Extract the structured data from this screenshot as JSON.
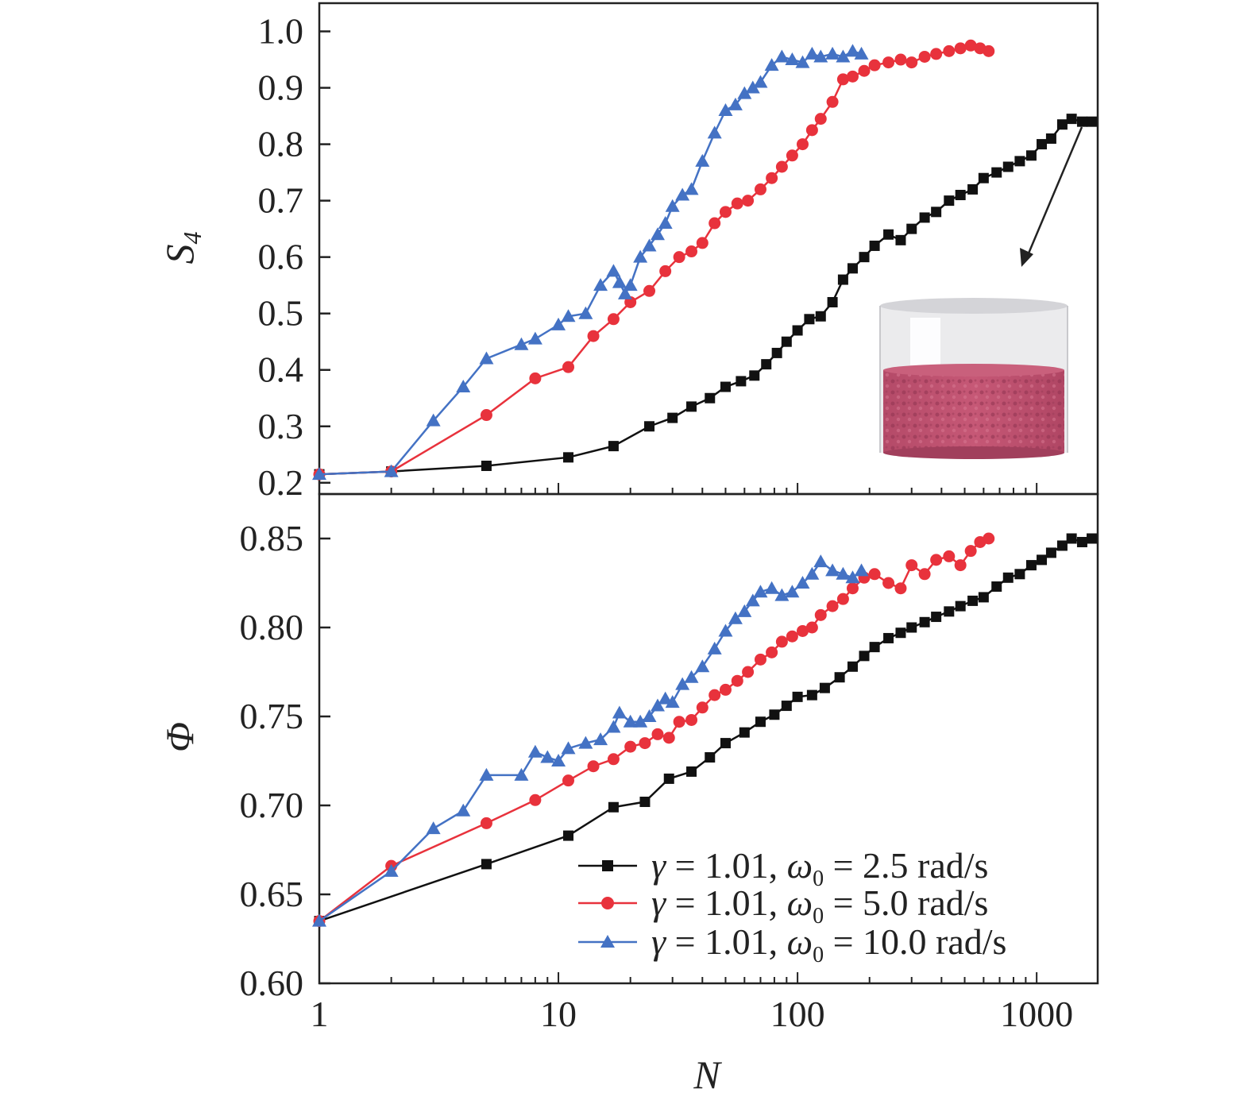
{
  "chart_data": [
    {
      "type": "line",
      "panel": "top",
      "xscale": "log",
      "xlim": [
        1,
        1800
      ],
      "ylim": [
        0.18,
        1.05
      ],
      "ylabel": "S",
      "ylabel_sub": "4",
      "yticks": [
        {
          "value": 0.2,
          "label": "0.2"
        },
        {
          "value": 0.3,
          "label": "0.3"
        },
        {
          "value": 0.4,
          "label": "0.4"
        },
        {
          "value": 0.5,
          "label": "0.5"
        },
        {
          "value": 0.6,
          "label": "0.6"
        },
        {
          "value": 0.7,
          "label": "0.7"
        },
        {
          "value": 0.8,
          "label": "0.8"
        },
        {
          "value": 0.9,
          "label": "0.9"
        },
        {
          "value": 1.0,
          "label": "1.0"
        }
      ],
      "inset": "image of a cylindrical container holding a packed granular bed",
      "series": [
        {
          "color": "#111111",
          "marker": "square",
          "x": [
            1,
            2,
            5,
            11,
            17,
            24,
            30,
            36,
            43,
            50,
            58,
            66,
            74,
            82,
            90,
            100,
            112,
            125,
            140,
            155,
            170,
            190,
            210,
            240,
            270,
            300,
            340,
            380,
            430,
            480,
            540,
            600,
            680,
            760,
            850,
            950,
            1050,
            1150,
            1280,
            1400,
            1550,
            1700
          ],
          "y": [
            0.215,
            0.22,
            0.23,
            0.245,
            0.265,
            0.3,
            0.315,
            0.335,
            0.35,
            0.37,
            0.38,
            0.39,
            0.41,
            0.43,
            0.45,
            0.47,
            0.49,
            0.495,
            0.52,
            0.56,
            0.58,
            0.6,
            0.62,
            0.64,
            0.63,
            0.65,
            0.67,
            0.68,
            0.7,
            0.71,
            0.72,
            0.74,
            0.75,
            0.76,
            0.77,
            0.78,
            0.8,
            0.81,
            0.835,
            0.845,
            0.84,
            0.84
          ]
        },
        {
          "color": "#e8323c",
          "marker": "circle",
          "x": [
            1,
            2,
            5,
            8,
            11,
            14,
            17,
            20,
            24,
            28,
            32,
            36,
            40,
            45,
            50,
            56,
            62,
            70,
            78,
            86,
            95,
            105,
            115,
            125,
            140,
            155,
            170,
            190,
            210,
            240,
            270,
            300,
            340,
            380,
            430,
            480,
            530,
            580,
            630
          ],
          "y": [
            0.215,
            0.22,
            0.32,
            0.385,
            0.405,
            0.46,
            0.49,
            0.52,
            0.54,
            0.575,
            0.6,
            0.61,
            0.625,
            0.66,
            0.68,
            0.695,
            0.7,
            0.72,
            0.74,
            0.76,
            0.78,
            0.8,
            0.825,
            0.845,
            0.875,
            0.915,
            0.92,
            0.93,
            0.94,
            0.945,
            0.95,
            0.945,
            0.955,
            0.96,
            0.965,
            0.97,
            0.975,
            0.97,
            0.965
          ]
        },
        {
          "color": "#4472c4",
          "marker": "triangle",
          "x": [
            1,
            2,
            3,
            4,
            5,
            7,
            8,
            10,
            11,
            13,
            15,
            17,
            18,
            19,
            20,
            22,
            24,
            26,
            28,
            30,
            33,
            36,
            40,
            45,
            50,
            55,
            60,
            65,
            70,
            78,
            86,
            95,
            105,
            115,
            125,
            140,
            155,
            170,
            185
          ],
          "y": [
            0.215,
            0.22,
            0.31,
            0.37,
            0.42,
            0.445,
            0.455,
            0.48,
            0.495,
            0.5,
            0.55,
            0.575,
            0.555,
            0.535,
            0.55,
            0.6,
            0.62,
            0.64,
            0.66,
            0.69,
            0.71,
            0.72,
            0.77,
            0.82,
            0.86,
            0.87,
            0.89,
            0.9,
            0.91,
            0.94,
            0.955,
            0.95,
            0.945,
            0.96,
            0.955,
            0.96,
            0.955,
            0.965,
            0.96
          ]
        }
      ]
    },
    {
      "type": "line",
      "panel": "bottom",
      "xscale": "log",
      "xlim": [
        1,
        1800
      ],
      "ylim": [
        0.6,
        0.875
      ],
      "xlabel": "N",
      "ylabel": "Φ",
      "xticks": [
        {
          "value": 1,
          "label": "1"
        },
        {
          "value": 10,
          "label": "10"
        },
        {
          "value": 100,
          "label": "100"
        },
        {
          "value": 1000,
          "label": "1000"
        }
      ],
      "yticks": [
        {
          "value": 0.6,
          "label": "0.60"
        },
        {
          "value": 0.65,
          "label": "0.65"
        },
        {
          "value": 0.7,
          "label": "0.70"
        },
        {
          "value": 0.75,
          "label": "0.75"
        },
        {
          "value": 0.8,
          "label": "0.80"
        },
        {
          "value": 0.85,
          "label": "0.85"
        }
      ],
      "legend_position": "bottom-right",
      "series": [
        {
          "name": "γ = 1.01, ω0 = 2.5 rad/s",
          "name_parts": {
            "gamma": "γ",
            "omega": "ω",
            "sub": "0",
            "pre": " = 1.01, ",
            "post": " = 2.5 rad/s"
          },
          "color": "#111111",
          "marker": "square",
          "x": [
            1,
            5,
            11,
            17,
            23,
            29,
            36,
            43,
            50,
            60,
            70,
            80,
            90,
            100,
            115,
            130,
            150,
            170,
            190,
            210,
            240,
            270,
            300,
            340,
            380,
            430,
            480,
            540,
            600,
            680,
            760,
            850,
            950,
            1050,
            1150,
            1280,
            1400,
            1550,
            1700
          ],
          "y": [
            0.635,
            0.667,
            0.683,
            0.699,
            0.702,
            0.715,
            0.719,
            0.727,
            0.735,
            0.741,
            0.747,
            0.751,
            0.756,
            0.761,
            0.762,
            0.766,
            0.772,
            0.778,
            0.784,
            0.789,
            0.794,
            0.797,
            0.8,
            0.803,
            0.806,
            0.809,
            0.812,
            0.815,
            0.817,
            0.823,
            0.828,
            0.83,
            0.835,
            0.838,
            0.842,
            0.846,
            0.85,
            0.848,
            0.85
          ]
        },
        {
          "name": "γ = 1.01, ω0 = 5.0 rad/s",
          "name_parts": {
            "gamma": "γ",
            "omega": "ω",
            "sub": "0",
            "pre": " = 1.01, ",
            "post": " = 5.0 rad/s"
          },
          "color": "#e8323c",
          "marker": "circle",
          "x": [
            1,
            2,
            5,
            8,
            11,
            14,
            17,
            20,
            23,
            26,
            29,
            32,
            36,
            40,
            45,
            50,
            56,
            62,
            70,
            78,
            86,
            95,
            105,
            115,
            125,
            140,
            155,
            170,
            190,
            210,
            240,
            270,
            300,
            340,
            380,
            430,
            480,
            530,
            580,
            630
          ],
          "y": [
            0.635,
            0.666,
            0.69,
            0.703,
            0.714,
            0.722,
            0.726,
            0.733,
            0.735,
            0.74,
            0.738,
            0.747,
            0.748,
            0.755,
            0.762,
            0.765,
            0.77,
            0.775,
            0.782,
            0.786,
            0.792,
            0.795,
            0.798,
            0.8,
            0.807,
            0.812,
            0.816,
            0.822,
            0.828,
            0.83,
            0.825,
            0.822,
            0.835,
            0.83,
            0.838,
            0.84,
            0.835,
            0.843,
            0.848,
            0.85
          ]
        },
        {
          "name": "γ = 1.01, ω0 = 10.0 rad/s",
          "name_parts": {
            "gamma": "γ",
            "omega": "ω",
            "sub": "0",
            "pre": " = 1.01, ",
            "post": " = 10.0 rad/s"
          },
          "color": "#4472c4",
          "marker": "triangle",
          "x": [
            1,
            2,
            3,
            4,
            5,
            7,
            8,
            9,
            10,
            11,
            13,
            15,
            17,
            18,
            20,
            22,
            24,
            26,
            28,
            30,
            33,
            36,
            40,
            45,
            50,
            55,
            60,
            65,
            70,
            78,
            86,
            95,
            105,
            115,
            125,
            140,
            155,
            170,
            185
          ],
          "y": [
            0.635,
            0.663,
            0.687,
            0.697,
            0.717,
            0.717,
            0.73,
            0.727,
            0.725,
            0.732,
            0.735,
            0.737,
            0.744,
            0.752,
            0.747,
            0.747,
            0.75,
            0.756,
            0.76,
            0.758,
            0.768,
            0.772,
            0.778,
            0.788,
            0.798,
            0.805,
            0.809,
            0.815,
            0.82,
            0.822,
            0.818,
            0.82,
            0.825,
            0.83,
            0.837,
            0.832,
            0.83,
            0.828,
            0.832
          ]
        }
      ]
    }
  ]
}
